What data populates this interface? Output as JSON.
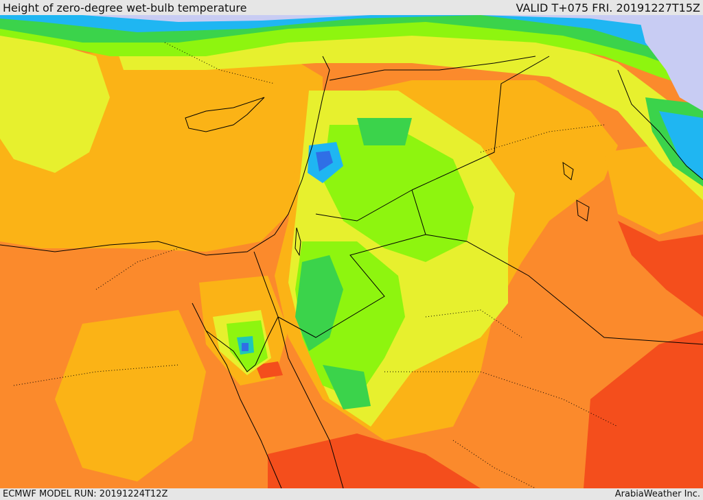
{
  "header": {
    "title": "Height of zero-degree wet-bulb temperature",
    "valid_time": "VALID T+075 FRI. 20191227T15Z"
  },
  "footer": {
    "model_run": "ECMWF MODEL RUN: 20191224T12Z",
    "credit": "ArabiaWeather Inc."
  },
  "palette": {
    "deep_red": "#f44e1c",
    "orange": "#fb8a2c",
    "amber": "#fbb316",
    "yellow": "#e7f02e",
    "lime": "#8ef50f",
    "green": "#3bd34b",
    "teal": "#1fc6b8",
    "cyan": "#1fb6f2",
    "blue": "#2f6fe6",
    "lavender": "#c8ccf3",
    "coast": "#000000",
    "border": "#000000"
  }
}
